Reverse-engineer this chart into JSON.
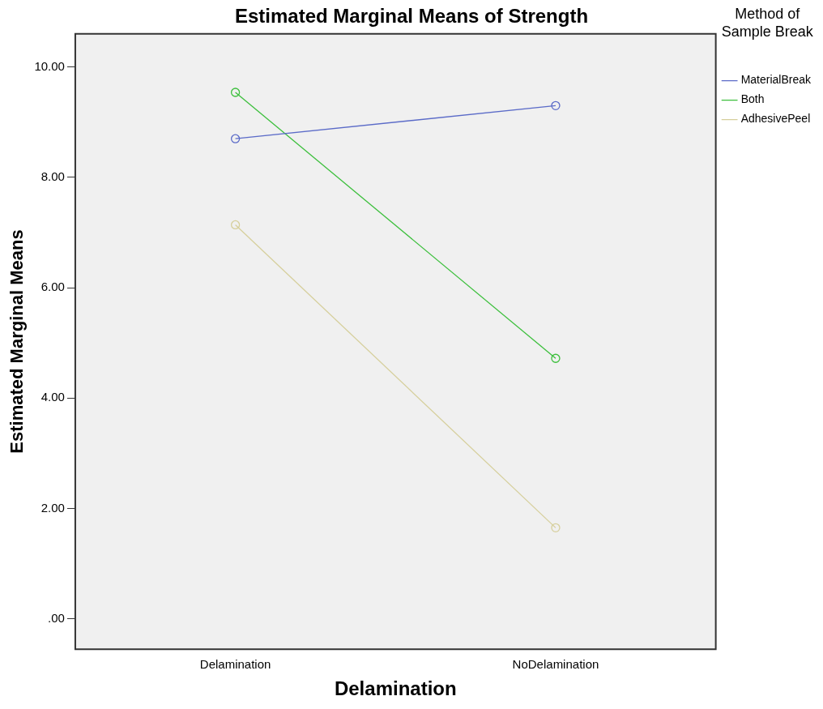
{
  "chart_data": {
    "type": "line",
    "title": "Estimated Marginal Means of Strength",
    "xlabel": "Delamination",
    "ylabel": "Estimated Marginal Means",
    "legend_title": "Method of Sample Break",
    "categories": [
      "Delamination",
      "NoDelamination"
    ],
    "series": [
      {
        "name": "MaterialBreak",
        "color": "#5b6bc8",
        "values": [
          8.7,
          9.3
        ]
      },
      {
        "name": "Both",
        "color": "#3cbf3c",
        "values": [
          9.54,
          4.72
        ]
      },
      {
        "name": "AdhesivePeel",
        "color": "#d6cf9c",
        "values": [
          7.14,
          1.65
        ]
      }
    ],
    "ylim": [
      -0.55,
      10.6
    ],
    "yticks": [
      {
        "value": 0,
        "label": ".00"
      },
      {
        "value": 2,
        "label": "2.00"
      },
      {
        "value": 4,
        "label": "4.00"
      },
      {
        "value": 6,
        "label": "6.00"
      },
      {
        "value": 8,
        "label": "8.00"
      },
      {
        "value": 10,
        "label": "10.00"
      }
    ],
    "grid": false,
    "legend": "right",
    "marker": "circle",
    "line_style": "solid"
  }
}
